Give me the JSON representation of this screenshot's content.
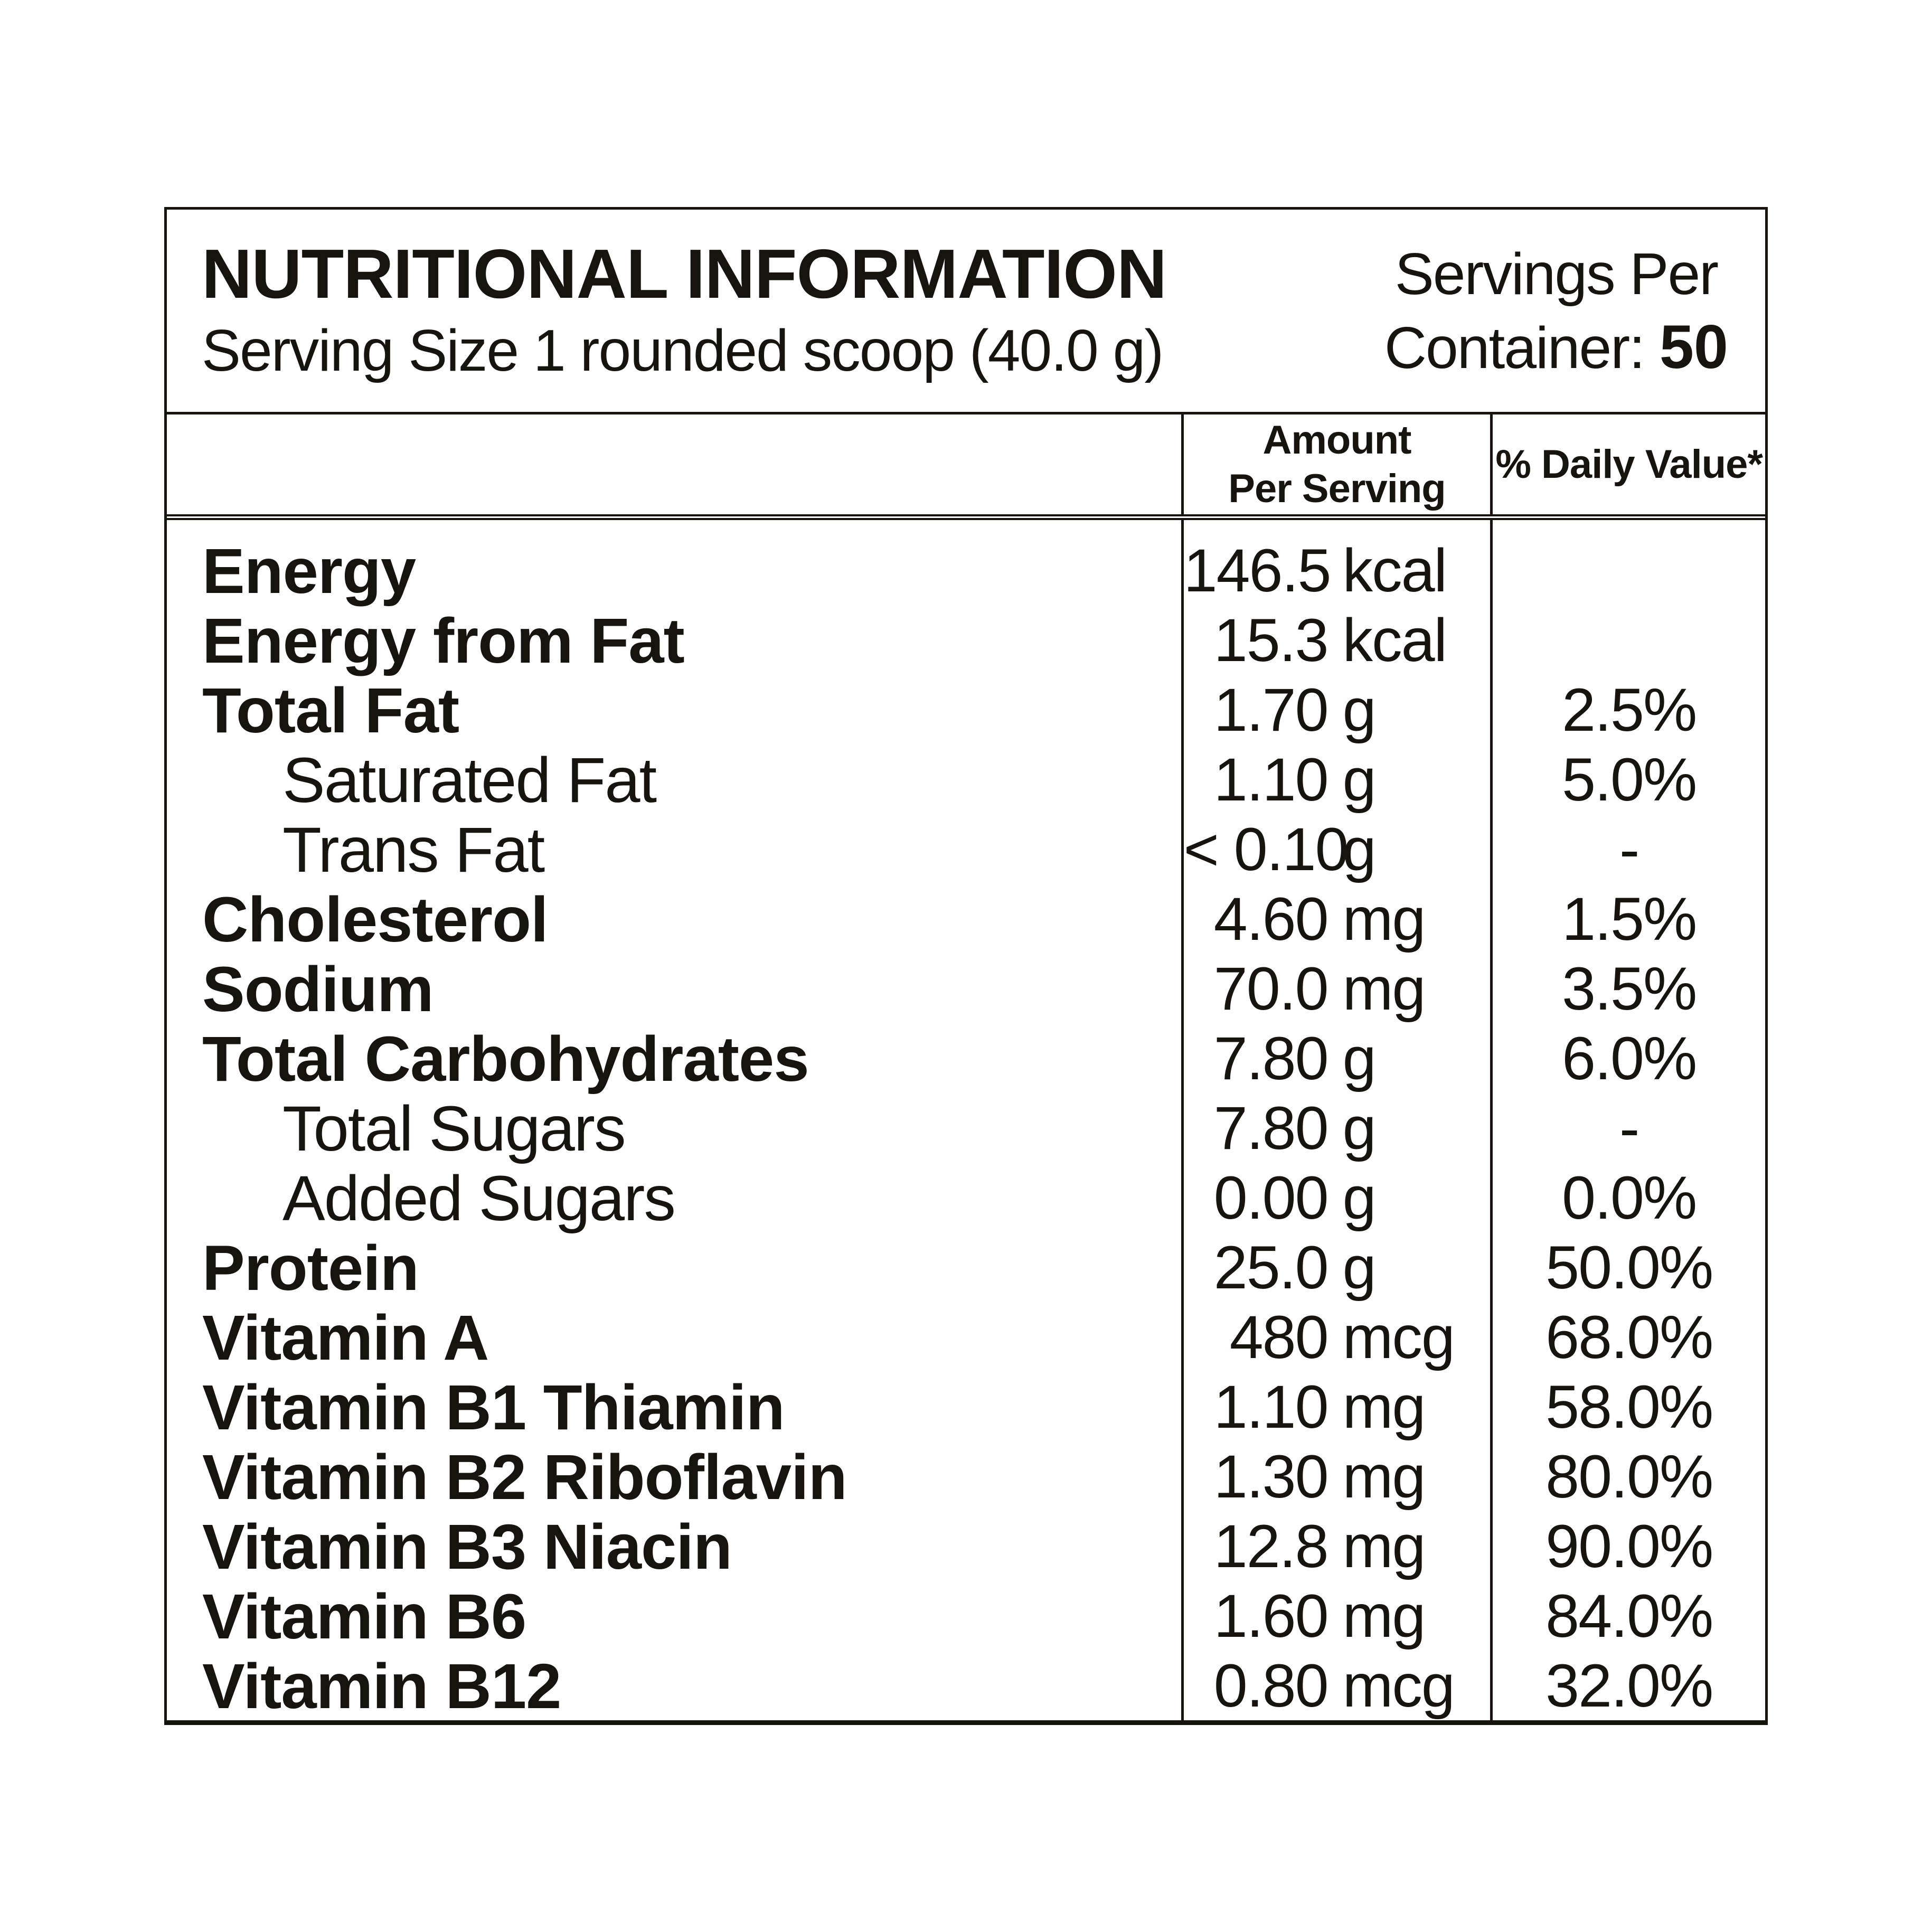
{
  "label": {
    "title": "NUTRITIONAL INFORMATION",
    "serving_size": "Serving Size 1 rounded scoop (40.0 g)",
    "servings_per": {
      "line1": "Servings Per",
      "line2_prefix": "Container:",
      "count": "50"
    },
    "columns": {
      "amount_line1": "Amount",
      "amount_line2": "Per Serving",
      "daily_value": "% Daily Value*"
    },
    "rows": [
      {
        "name": "Energy",
        "bold": true,
        "indent": false,
        "amount": "146.5",
        "unit": "kcal",
        "dv": ""
      },
      {
        "name": "Energy from Fat",
        "bold": true,
        "indent": false,
        "amount": "15.3",
        "unit": "kcal",
        "dv": ""
      },
      {
        "name": "Total Fat",
        "bold": true,
        "indent": false,
        "amount": "1.70",
        "unit": "g",
        "dv": "2.5%"
      },
      {
        "name": "Saturated Fat",
        "bold": false,
        "indent": true,
        "amount": "1.10",
        "unit": "g",
        "dv": "5.0%"
      },
      {
        "name": "Trans Fat",
        "bold": false,
        "indent": true,
        "amount": "< 0.10",
        "unit": "g",
        "dv": "-"
      },
      {
        "name": "Cholesterol",
        "bold": true,
        "indent": false,
        "amount": "4.60",
        "unit": "mg",
        "dv": "1.5%"
      },
      {
        "name": "Sodium",
        "bold": true,
        "indent": false,
        "amount": "70.0",
        "unit": "mg",
        "dv": "3.5%"
      },
      {
        "name": "Total Carbohydrates",
        "bold": true,
        "indent": false,
        "amount": "7.80",
        "unit": "g",
        "dv": "6.0%"
      },
      {
        "name": "Total Sugars",
        "bold": false,
        "indent": true,
        "amount": "7.80",
        "unit": "g",
        "dv": "-"
      },
      {
        "name": "Added Sugars",
        "bold": false,
        "indent": true,
        "amount": "0.00",
        "unit": "g",
        "dv": "0.0%"
      },
      {
        "name": "Protein",
        "bold": true,
        "indent": false,
        "amount": "25.0",
        "unit": "g",
        "dv": "50.0%"
      },
      {
        "name": "Vitamin A",
        "bold": true,
        "indent": false,
        "amount": "480",
        "unit": "mcg",
        "dv": "68.0%"
      },
      {
        "name": "Vitamin B1 Thiamin",
        "bold": true,
        "indent": false,
        "amount": "1.10",
        "unit": "mg",
        "dv": "58.0%"
      },
      {
        "name": "Vitamin B2 Riboflavin",
        "bold": true,
        "indent": false,
        "amount": "1.30",
        "unit": "mg",
        "dv": "80.0%"
      },
      {
        "name": "Vitamin B3 Niacin",
        "bold": true,
        "indent": false,
        "amount": "12.8",
        "unit": "mg",
        "dv": "90.0%"
      },
      {
        "name": "Vitamin B6",
        "bold": true,
        "indent": false,
        "amount": "1.60",
        "unit": "mg",
        "dv": "84.0%"
      },
      {
        "name": "Vitamin B12",
        "bold": true,
        "indent": false,
        "amount": "0.80",
        "unit": "mcg",
        "dv": "32.0%"
      }
    ],
    "colors": {
      "ink": "#17140f",
      "background": "#ffffff"
    }
  }
}
